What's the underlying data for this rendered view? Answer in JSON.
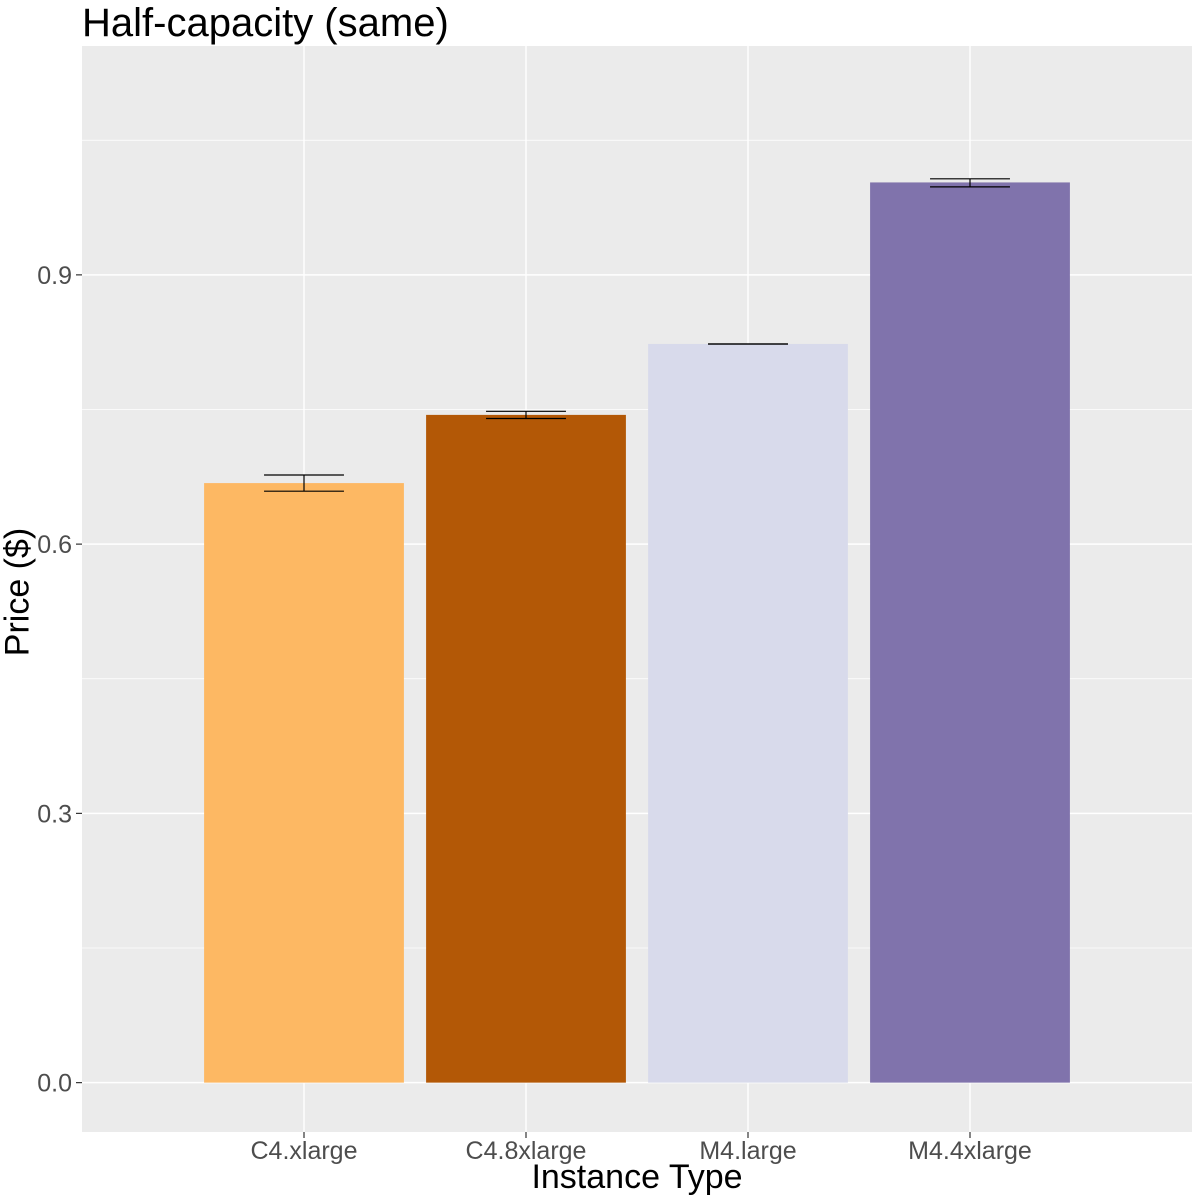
{
  "chart_data": {
    "type": "bar",
    "title": "Half-capacity (same)",
    "xlabel": "Instance Type",
    "ylabel": "Price ($)",
    "categories": [
      "C4.xlarge",
      "C4.8xlarge",
      "M4.large",
      "M4.4xlarge"
    ],
    "values": [
      0.668,
      0.744,
      0.823,
      1.003
    ],
    "error_low": [
      0.659,
      0.74,
      0.823,
      0.998
    ],
    "error_high": [
      0.677,
      0.748,
      0.823,
      1.007
    ],
    "colors": [
      "#fdb863",
      "#b35806",
      "#d8daeb",
      "#8073ac"
    ],
    "ylim": [
      -0.055,
      1.155
    ],
    "yticks": [
      0.0,
      0.3,
      0.6,
      0.9
    ],
    "ytick_labels": [
      "0.0",
      "0.3",
      "0.6",
      "0.9"
    ],
    "grid": true,
    "legend": "none",
    "panel_background": "#ebebeb",
    "grid_color": "#ffffff"
  }
}
